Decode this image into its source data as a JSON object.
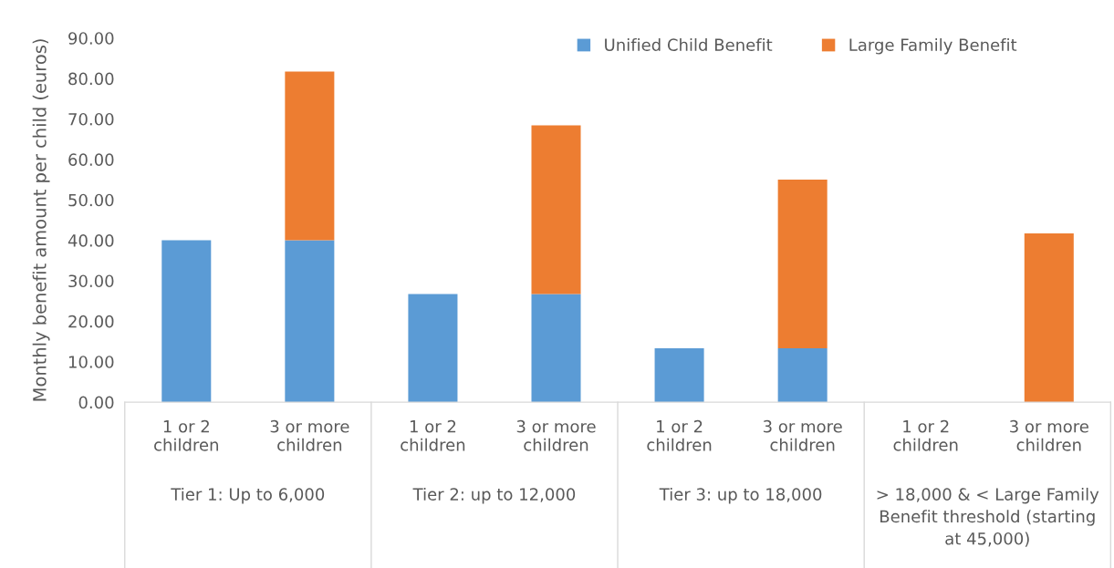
{
  "chart_data": {
    "type": "bar",
    "stacked": true,
    "ylabel": "Monthly benefit amount per child (euros)",
    "categories": [
      "1 or 2\nchildren",
      "3 or more\nchildren",
      "1 or 2\nchildren",
      "3 or more\nchildren",
      "1 or 2\nchildren",
      "3 or more\nchildren",
      "1 or 2\nchildren",
      "3 or more\nchildren"
    ],
    "series": [
      {
        "name": "Unified Child Benefit",
        "color": "#5b9bd5",
        "values": [
          40,
          40,
          26.7,
          26.7,
          13.3,
          13.3,
          null,
          null
        ]
      },
      {
        "name": "Large Family Benefit",
        "color": "#ed7d31",
        "values": [
          null,
          41.7,
          null,
          41.7,
          null,
          41.7,
          null,
          41.7
        ]
      }
    ],
    "annotations": [
      "Tier 1: Up to 6,000",
      "Tier 2: up to 12,000",
      "Tier 3: up to 18,000",
      "> 18,000 & < Large Family\nBenefit threshold (starting\nat 45,000)"
    ],
    "ylim": [
      0,
      90
    ],
    "yticks": [
      {
        "value": 0,
        "label": "0.00"
      },
      {
        "value": 10,
        "label": "10.00"
      },
      {
        "value": 20,
        "label": "20.00"
      },
      {
        "value": 30,
        "label": "30.00"
      },
      {
        "value": 40,
        "label": "40.00"
      },
      {
        "value": 50,
        "label": "50.00"
      },
      {
        "value": 60,
        "label": "60.00"
      },
      {
        "value": 70,
        "label": "70.00"
      },
      {
        "value": 80,
        "label": "80.00"
      },
      {
        "value": 90,
        "label": "90.00"
      }
    ],
    "grid": false,
    "legend": "top right"
  }
}
